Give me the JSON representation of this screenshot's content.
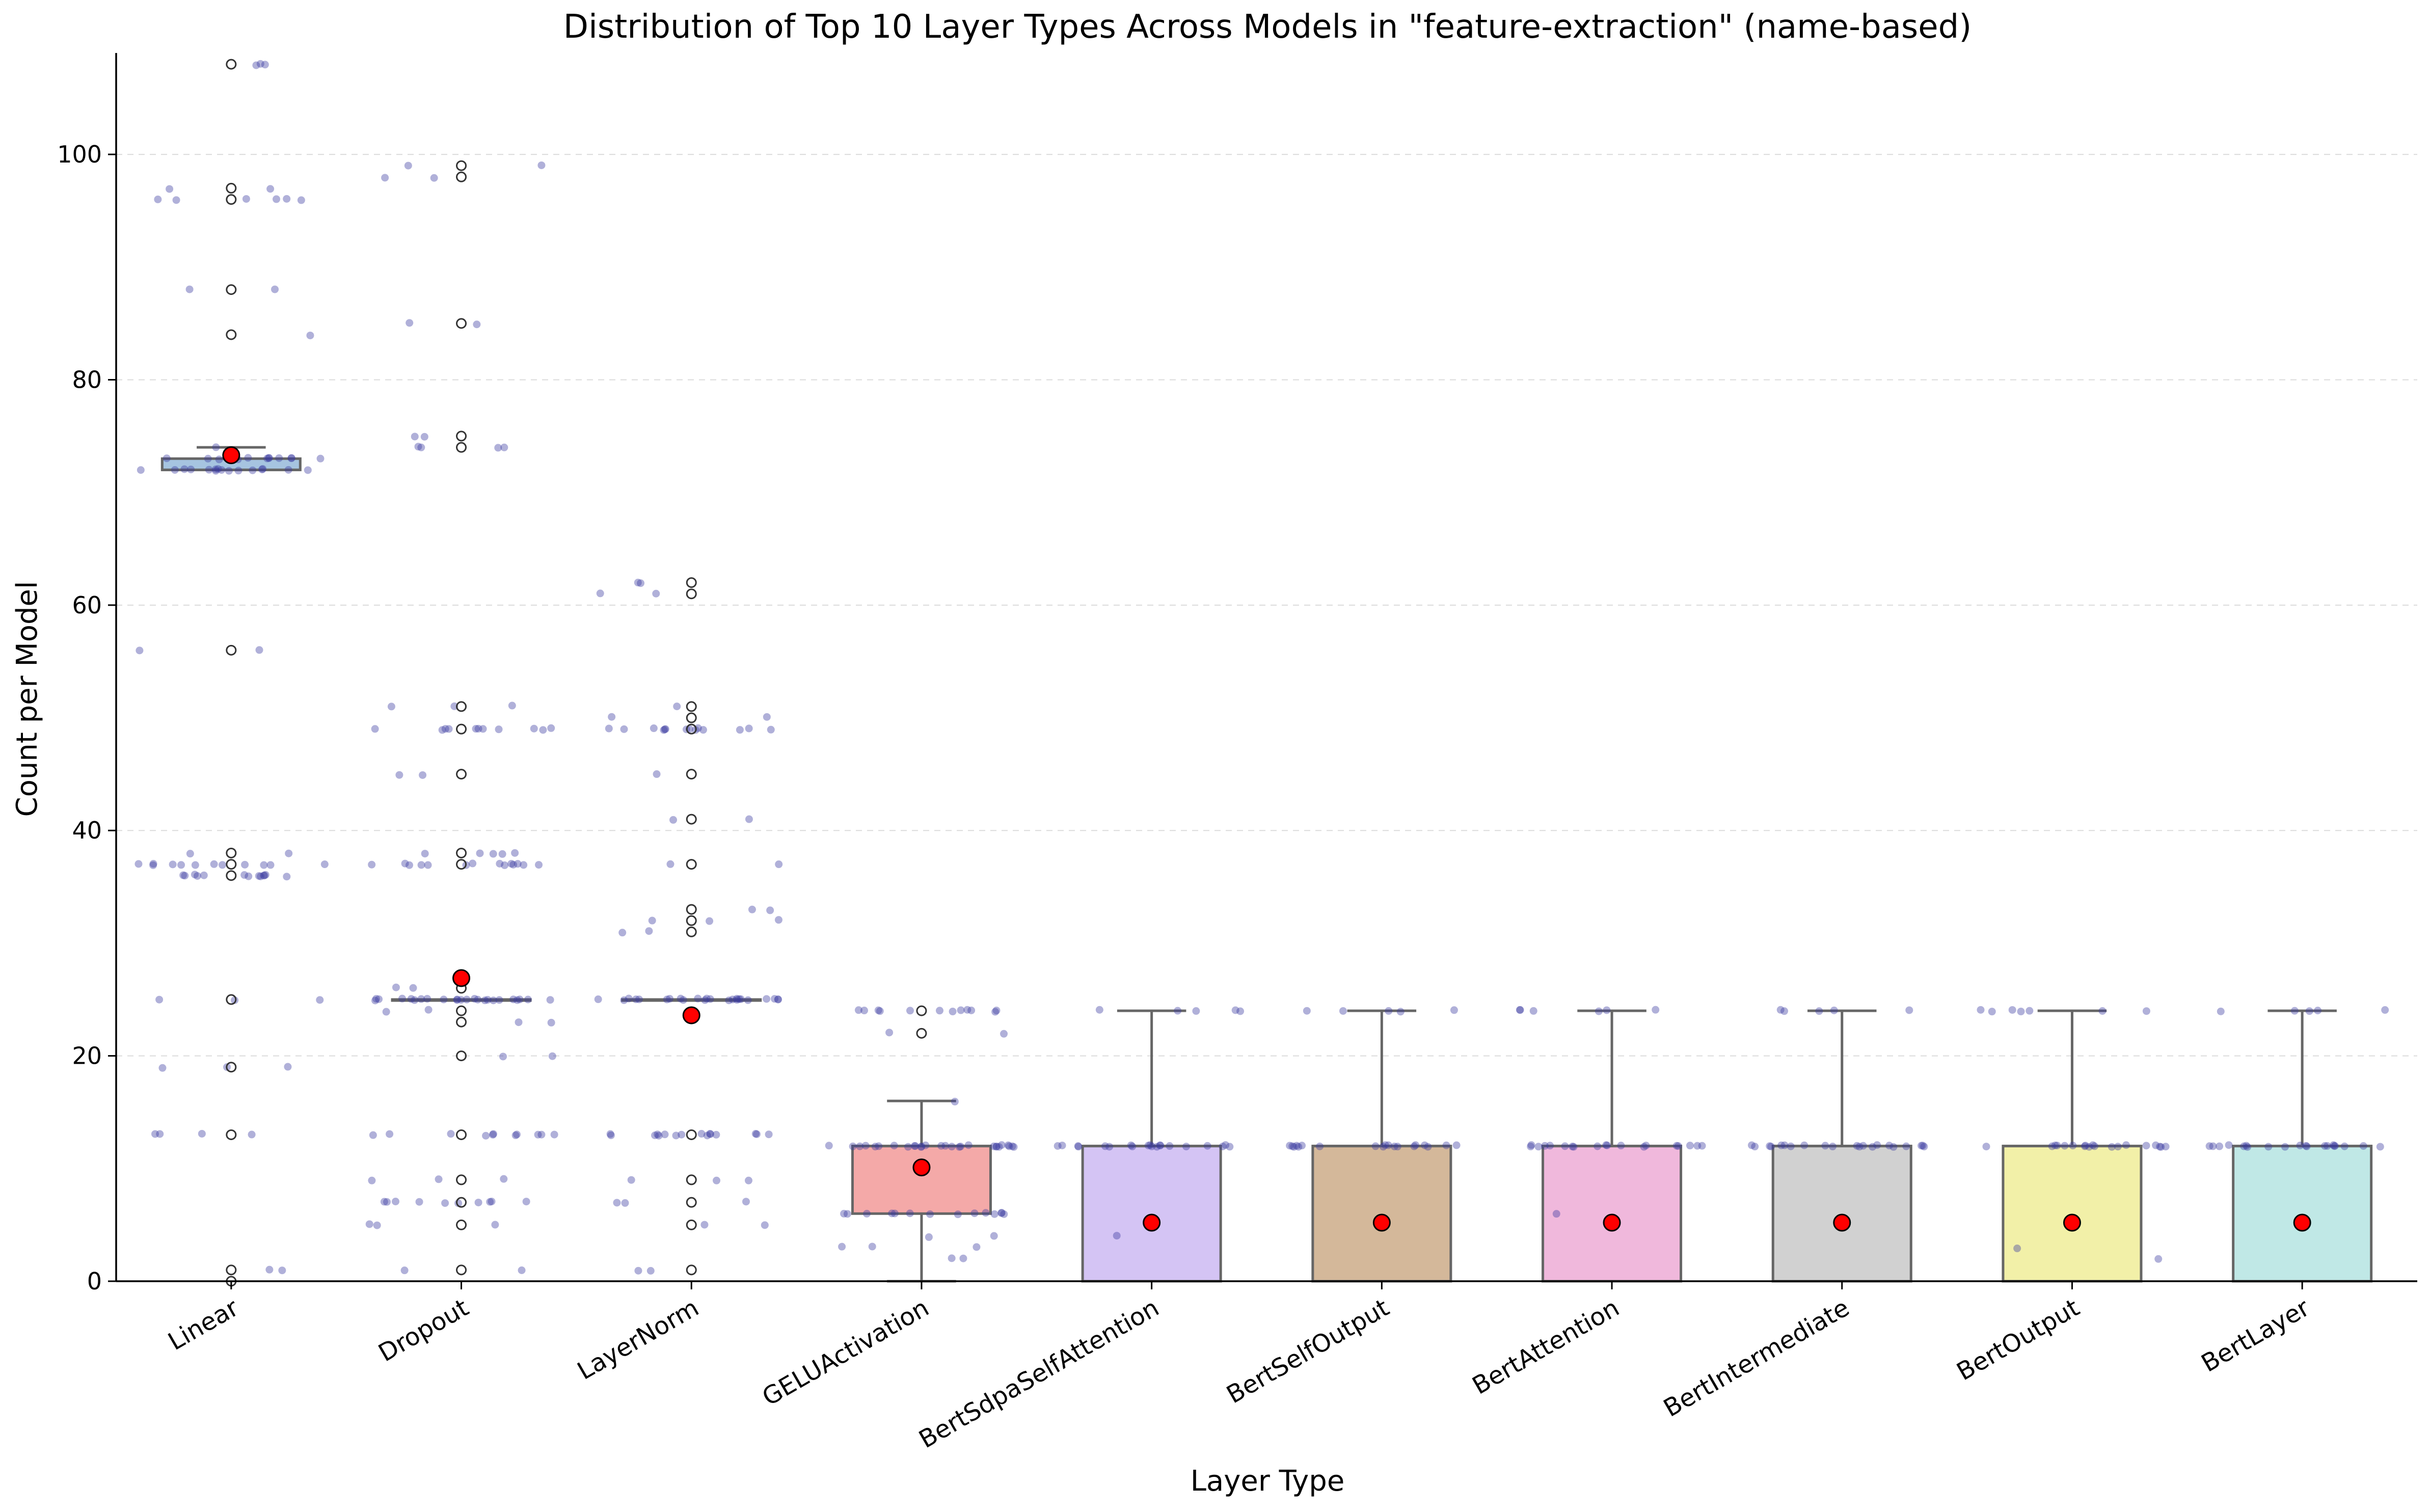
{
  "chart_data": {
    "type": "box",
    "title": "Distribution of Top 10 Layer Types Across Models in \"feature-extraction\" (name-based)",
    "xlabel": "Layer Type",
    "ylabel": "Count per Model",
    "ylim": [
      0,
      109
    ],
    "yticks": [
      0,
      20,
      40,
      60,
      80,
      100
    ],
    "grid": "y-dashed",
    "categories": [
      "Linear",
      "Dropout",
      "LayerNorm",
      "GELUActivation",
      "BertSdpaSelfAttention",
      "BertSelfOutput",
      "BertAttention",
      "BertIntermediate",
      "BertOutput",
      "BertLayer"
    ],
    "colors": [
      "#a6c4e0",
      "#b3d6b3",
      "#e3c49a",
      "#f4a9a8",
      "#d4c4f4",
      "#d4b89a",
      "#f0b8dc",
      "#d1d1d1",
      "#f2f0a8",
      "#c0e8e6"
    ],
    "boxes": [
      {
        "name": "Linear",
        "q1": 72,
        "median": 72,
        "q3": 73,
        "whisker_low": 72,
        "whisker_high": 74,
        "mean": 73.3,
        "outliers": [
          108,
          97,
          96,
          88,
          84,
          56,
          38,
          37,
          36,
          25,
          19,
          13,
          1,
          0
        ]
      },
      {
        "name": "Dropout",
        "q1": 25,
        "median": 25,
        "q3": 25,
        "whisker_low": 25,
        "whisker_high": 25,
        "mean": 26.9,
        "outliers": [
          99,
          98,
          85,
          75,
          74,
          51,
          49,
          45,
          38,
          37,
          26,
          24,
          23,
          20,
          13,
          9,
          7,
          5,
          1
        ]
      },
      {
        "name": "LayerNorm",
        "q1": 25,
        "median": 25,
        "q3": 25,
        "whisker_low": 25,
        "whisker_high": 25,
        "mean": 23.6,
        "outliers": [
          62,
          61,
          51,
          50,
          49,
          45,
          41,
          37,
          33,
          32,
          31,
          13,
          9,
          7,
          5,
          1
        ]
      },
      {
        "name": "GELUActivation",
        "q1": 6,
        "median": 12,
        "q3": 12,
        "whisker_low": 0,
        "whisker_high": 16,
        "mean": 10.1,
        "outliers": [
          24,
          22
        ]
      },
      {
        "name": "BertSdpaSelfAttention",
        "q1": 0,
        "median": 12,
        "q3": 12,
        "whisker_low": 0,
        "whisker_high": 24,
        "mean": 5.2,
        "outliers": []
      },
      {
        "name": "BertSelfOutput",
        "q1": 0,
        "median": 12,
        "q3": 12,
        "whisker_low": 0,
        "whisker_high": 24,
        "mean": 5.2,
        "outliers": []
      },
      {
        "name": "BertAttention",
        "q1": 0,
        "median": 12,
        "q3": 12,
        "whisker_low": 0,
        "whisker_high": 24,
        "mean": 5.2,
        "outliers": []
      },
      {
        "name": "BertIntermediate",
        "q1": 0,
        "median": 12,
        "q3": 12,
        "whisker_low": 0,
        "whisker_high": 24,
        "mean": 5.2,
        "outliers": []
      },
      {
        "name": "BertOutput",
        "q1": 0,
        "median": 12,
        "q3": 12,
        "whisker_low": 0,
        "whisker_high": 24,
        "mean": 5.2,
        "outliers": []
      },
      {
        "name": "BertLayer",
        "q1": 0,
        "median": 12,
        "q3": 12,
        "whisker_low": 0,
        "whisker_high": 24,
        "mean": 5.2,
        "outliers": []
      }
    ],
    "jitter_points": [
      {
        "category": "Linear",
        "values": [
          108,
          108,
          108,
          97,
          97,
          96,
          96,
          96,
          96,
          96,
          96,
          88,
          88,
          84,
          74,
          73,
          73,
          73,
          73,
          73,
          73,
          73,
          73,
          73,
          73,
          73,
          73,
          72,
          72,
          72,
          72,
          72,
          72,
          72,
          72,
          72,
          72,
          72,
          72,
          72,
          72,
          72,
          72,
          56,
          56,
          38,
          38,
          37,
          37,
          37,
          37,
          37,
          37,
          37,
          37,
          37,
          37,
          37,
          37,
          36,
          36,
          36,
          36,
          36,
          36,
          36,
          36,
          36,
          36,
          36,
          36,
          36,
          25,
          25,
          25,
          19,
          19,
          19,
          13,
          13,
          13,
          13,
          1,
          1
        ]
      },
      {
        "category": "Dropout",
        "values": [
          99,
          99,
          98,
          98,
          85,
          85,
          75,
          75,
          74,
          74,
          74,
          74,
          51,
          51,
          51,
          49,
          49,
          49,
          49,
          49,
          49,
          49,
          49,
          49,
          49,
          49,
          45,
          45,
          38,
          38,
          38,
          38,
          38,
          37,
          37,
          37,
          37,
          37,
          37,
          37,
          37,
          37,
          37,
          37,
          37,
          37,
          37,
          26,
          26,
          25,
          25,
          25,
          25,
          25,
          25,
          25,
          25,
          25,
          25,
          25,
          25,
          25,
          25,
          25,
          25,
          25,
          25,
          25,
          25,
          25,
          25,
          25,
          25,
          24,
          24,
          23,
          23,
          20,
          20,
          13,
          13,
          13,
          13,
          13,
          13,
          13,
          13,
          13,
          13,
          13,
          9,
          9,
          9,
          7,
          7,
          7,
          7,
          7,
          7,
          7,
          7,
          7,
          7,
          5,
          5,
          5,
          1,
          1
        ]
      },
      {
        "category": "LayerNorm",
        "values": [
          62,
          62,
          61,
          61,
          51,
          50,
          50,
          49,
          49,
          49,
          49,
          49,
          49,
          49,
          49,
          49,
          49,
          49,
          49,
          49,
          49,
          45,
          41,
          41,
          37,
          37,
          33,
          33,
          32,
          32,
          32,
          31,
          31,
          25,
          25,
          25,
          25,
          25,
          25,
          25,
          25,
          25,
          25,
          25,
          25,
          25,
          25,
          25,
          25,
          25,
          25,
          25,
          25,
          25,
          25,
          25,
          25,
          13,
          13,
          13,
          13,
          13,
          13,
          13,
          13,
          13,
          13,
          13,
          13,
          13,
          13,
          13,
          13,
          9,
          9,
          9,
          7,
          7,
          7,
          5,
          5,
          1,
          1
        ]
      },
      {
        "category": "GELUActivation",
        "values": [
          24,
          24,
          24,
          24,
          24,
          24,
          24,
          24,
          24,
          24,
          24,
          24,
          22,
          22,
          16,
          12,
          12,
          12,
          12,
          12,
          12,
          12,
          12,
          12,
          12,
          12,
          12,
          12,
          12,
          12,
          12,
          12,
          12,
          12,
          12,
          12,
          12,
          12,
          12,
          12,
          12,
          12,
          12,
          6,
          6,
          6,
          6,
          6,
          6,
          6,
          6,
          6,
          6,
          6,
          6,
          6,
          6,
          4,
          4,
          3,
          3,
          3,
          2,
          2
        ]
      },
      {
        "category": "BertSdpaSelfAttention",
        "values": [
          24,
          24,
          24,
          24,
          24,
          12,
          12,
          12,
          12,
          12,
          12,
          12,
          12,
          12,
          12,
          12,
          12,
          12,
          12,
          12,
          12,
          12,
          12,
          12,
          12,
          4
        ]
      },
      {
        "category": "BertSelfOutput",
        "values": [
          24,
          24,
          24,
          24,
          24,
          12,
          12,
          12,
          12,
          12,
          12,
          12,
          12,
          12,
          12,
          12,
          12,
          12,
          12,
          12,
          12,
          12,
          12,
          12
        ]
      },
      {
        "category": "BertAttention",
        "values": [
          24,
          24,
          24,
          24,
          24,
          24,
          12,
          12,
          12,
          12,
          12,
          12,
          12,
          12,
          12,
          12,
          12,
          12,
          12,
          12,
          12,
          12,
          12,
          12,
          12,
          6
        ]
      },
      {
        "category": "BertIntermediate",
        "values": [
          24,
          24,
          24,
          24,
          24,
          12,
          12,
          12,
          12,
          12,
          12,
          12,
          12,
          12,
          12,
          12,
          12,
          12,
          12,
          12,
          12,
          12,
          12,
          12,
          12,
          12
        ]
      },
      {
        "category": "BertOutput",
        "values": [
          24,
          24,
          24,
          24,
          24,
          24,
          24,
          12,
          12,
          12,
          12,
          12,
          12,
          12,
          12,
          12,
          12,
          12,
          12,
          12,
          12,
          12,
          12,
          12,
          12,
          12,
          3,
          2
        ]
      },
      {
        "category": "BertLayer",
        "values": [
          24,
          24,
          24,
          24,
          24,
          12,
          12,
          12,
          12,
          12,
          12,
          12,
          12,
          12,
          12,
          12,
          12,
          12,
          12,
          12,
          12,
          12,
          12,
          12,
          12
        ]
      }
    ],
    "mean_marker_color": "#ff0000",
    "jitter_color": "#3a3aa0",
    "box_edge_color": "#666666"
  }
}
